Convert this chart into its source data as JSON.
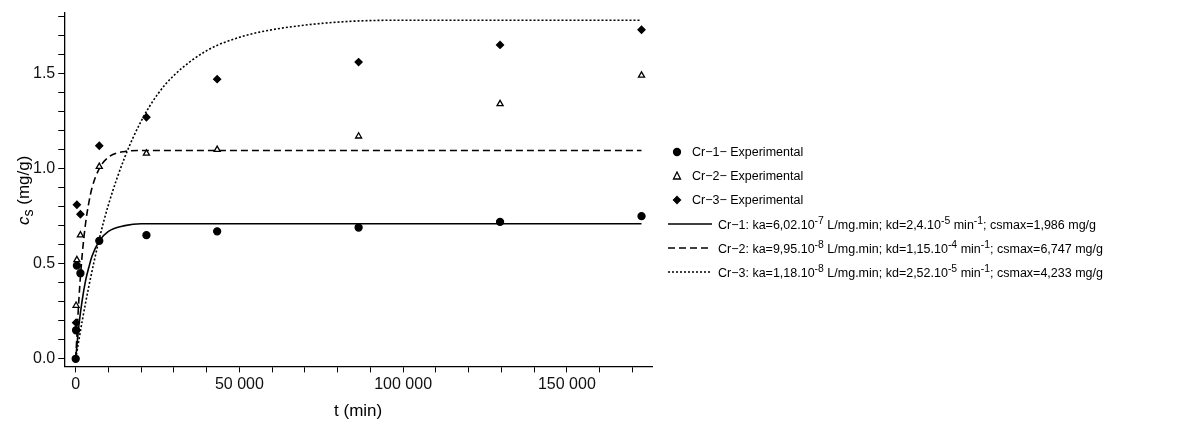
{
  "chart_data": {
    "type": "scatter",
    "xlabel": "t (min)",
    "ylabel": "c$_{s}$ (mg/g)",
    "xlim": [
      -3500,
      176000
    ],
    "ylim": [
      -0.04,
      1.82
    ],
    "xticks": [
      {
        "value": 0,
        "label": "0"
      },
      {
        "value": 10000,
        "label": null
      },
      {
        "value": 20000,
        "label": null
      },
      {
        "value": 30000,
        "label": null
      },
      {
        "value": 40000,
        "label": null
      },
      {
        "value": 50000,
        "label": "50 000"
      },
      {
        "value": 60000,
        "label": null
      },
      {
        "value": 70000,
        "label": null
      },
      {
        "value": 80000,
        "label": null
      },
      {
        "value": 90000,
        "label": null
      },
      {
        "value": 100000,
        "label": "100 000"
      },
      {
        "value": 110000,
        "label": null
      },
      {
        "value": 120000,
        "label": null
      },
      {
        "value": 130000,
        "label": null
      },
      {
        "value": 140000,
        "label": null
      },
      {
        "value": 150000,
        "label": "150 000"
      },
      {
        "value": 160000,
        "label": null
      },
      {
        "value": 170000,
        "label": null
      }
    ],
    "yticks": [
      {
        "value": 0,
        "label": "0.0"
      },
      {
        "value": 0.1,
        "label": null
      },
      {
        "value": 0.2,
        "label": null
      },
      {
        "value": 0.3,
        "label": null
      },
      {
        "value": 0.4,
        "label": null
      },
      {
        "value": 0.5,
        "label": "0.5"
      },
      {
        "value": 0.6,
        "label": null
      },
      {
        "value": 0.7,
        "label": null
      },
      {
        "value": 0.8,
        "label": null
      },
      {
        "value": 0.9,
        "label": null
      },
      {
        "value": 1.0,
        "label": "1.0"
      },
      {
        "value": 1.1,
        "label": null
      },
      {
        "value": 1.2,
        "label": null
      },
      {
        "value": 1.3,
        "label": null
      },
      {
        "value": 1.4,
        "label": null
      },
      {
        "value": 1.5,
        "label": "1.5"
      },
      {
        "value": 1.6,
        "label": null
      },
      {
        "value": 1.7,
        "label": null
      },
      {
        "value": 1.8,
        "label": null
      }
    ],
    "grid": false,
    "legend": "right",
    "series": [
      {
        "name": "Cr−1− Experimental",
        "type": "scatter",
        "marker": "circle",
        "color": "#000000",
        "x": [
          0,
          120,
          360,
          1440,
          7200,
          21600,
          43200,
          86400,
          129600,
          172800
        ],
        "values": [
          0,
          0.15,
          0.49,
          0.45,
          0.62,
          0.65,
          0.67,
          0.69,
          0.72,
          0.75
        ]
      },
      {
        "name": "Cr−2− Experimental",
        "type": "scatter",
        "marker": "triangle",
        "color": "#000000",
        "x": [
          120,
          360,
          1440,
          7200,
          21600,
          43200,
          86400,
          129600,
          172800
        ],
        "values": [
          0.28,
          0.52,
          0.65,
          1.01,
          1.08,
          1.1,
          1.17,
          1.34,
          1.49
        ]
      },
      {
        "name": "Cr−3− Experimental",
        "type": "scatter",
        "marker": "diamond",
        "color": "#000000",
        "x": [
          120,
          360,
          1440,
          7200,
          21600,
          43200,
          86400,
          129600,
          172800
        ],
        "values": [
          0.19,
          0.81,
          0.76,
          1.12,
          1.27,
          1.47,
          1.56,
          1.65,
          1.73
        ]
      },
      {
        "name": "Cr−1: ka=6,02.10$^{-7}$ L/mg.min; kd=2,4.10$^{-5}$ min$^{-1}$; csmax=1,986 mg/g",
        "type": "line",
        "marker": "none",
        "line_style": "solid",
        "color": "#000000",
        "x": [
          0,
          1000,
          2000,
          3000,
          4000,
          5000,
          7200,
          10000,
          15000,
          20000,
          172800
        ],
        "values": [
          0,
          0.18,
          0.31,
          0.41,
          0.48,
          0.54,
          0.62,
          0.67,
          0.7,
          0.71,
          0.71
        ]
      },
      {
        "name": "Cr−2: ka=9,95.10$^{-8}$ L/mg.min; kd=1,15.10$^{-4}$ min$^{-1}$; csmax=6,747 mg/g",
        "type": "line",
        "marker": "none",
        "line_style": "dashed",
        "color": "#000000",
        "x": [
          0,
          1000,
          2000,
          3000,
          4000,
          5000,
          7200,
          10000,
          15000,
          20000,
          172800
        ],
        "values": [
          0,
          0.32,
          0.55,
          0.71,
          0.82,
          0.9,
          1.0,
          1.06,
          1.09,
          1.095,
          1.095
        ]
      },
      {
        "name": "Cr−3: ka=1,18.10$^{-8}$ L/mg.min; kd=2,52.10$^{-5}$ min$^{-1}$; csmax=4,233 mg/g",
        "type": "line",
        "marker": "none",
        "line_style": "dotted",
        "color": "#000000",
        "x": [
          0,
          2000,
          4000,
          7200,
          10000,
          15000,
          20000,
          25000,
          30000,
          40000,
          50000,
          60000,
          80000,
          100000,
          130000,
          172800
        ],
        "values": [
          0,
          0.2,
          0.38,
          0.63,
          0.81,
          1.06,
          1.25,
          1.39,
          1.49,
          1.62,
          1.69,
          1.73,
          1.77,
          1.78,
          1.78,
          1.78
        ]
      }
    ]
  }
}
